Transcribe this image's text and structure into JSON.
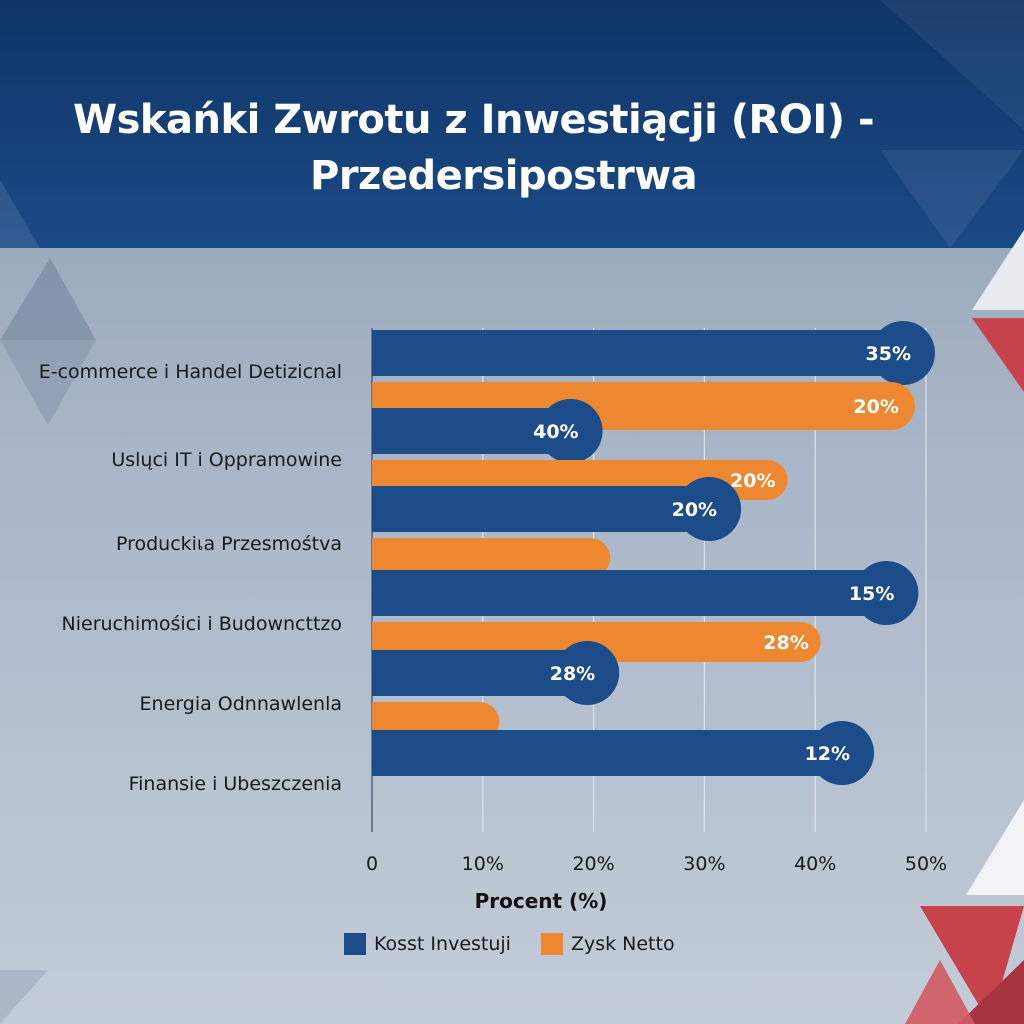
{
  "title_line1": "Wskańki Zwrotu z Inwestiącji (ROI) -",
  "title_line2": "Przedersipostrwa",
  "colors": {
    "series1": "#1c4c8a",
    "series2": "#ee8830",
    "accent_red": "#c8424c",
    "header": "#143e74"
  },
  "chart_data": {
    "type": "bar",
    "orientation": "horizontal",
    "categories": [
      "E-commerce i Handel Detizicnal",
      "Uslųci IT i Oppramowine",
      "Produckiเa Przesmośtva",
      "Nieruchimośici i Budowncttzo",
      "Energia Odnnawlenla",
      "Finansie i Ubeszczenia"
    ],
    "series": [
      {
        "name": "Kosst Investuji",
        "values": [
          50,
          20,
          32.5,
          48.5,
          21.5,
          44.5
        ],
        "labels": [
          "35%",
          "40%",
          "20%",
          "15%",
          "28%",
          "12%"
        ]
      },
      {
        "name": "Zysk Netto",
        "values": [
          49,
          37.5,
          21.5,
          40.5,
          11.5,
          null
        ],
        "labels": [
          "20%",
          "20%",
          "",
          "28%",
          "",
          ""
        ]
      }
    ],
    "xlabel": "Procent (%)",
    "xticks": [
      "0",
      "10%",
      "20%",
      "30%",
      "40%",
      "50%"
    ],
    "xtick_values": [
      0,
      10,
      20,
      30,
      40,
      50
    ],
    "xlim": [
      0,
      50
    ],
    "grid": true,
    "legend_position": "bottom"
  }
}
